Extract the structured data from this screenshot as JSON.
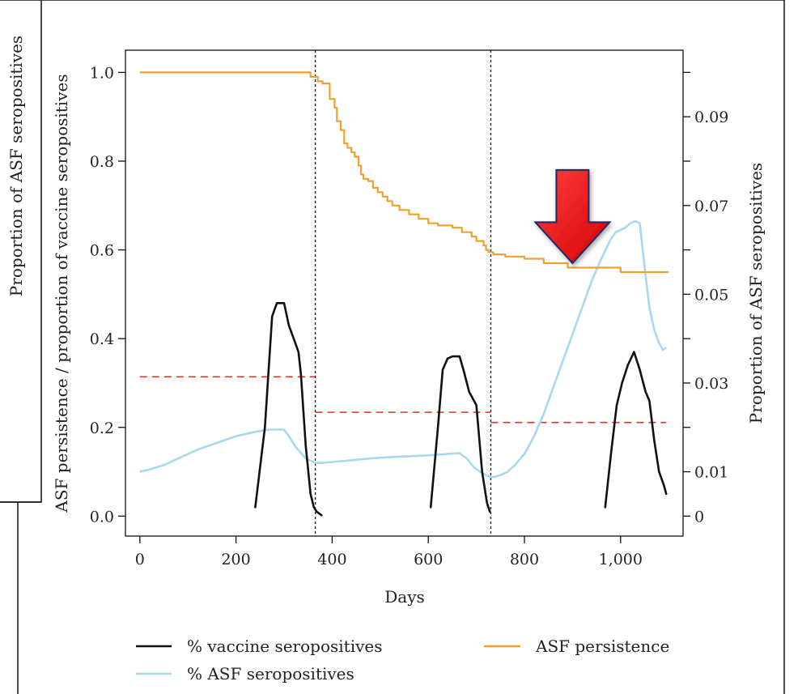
{
  "page": {
    "outer_label": "Proportion of ASF seropositives"
  },
  "chart_data": {
    "type": "line",
    "xlabel": "Days",
    "ylabel_left": "ASF persistence / proportion of vaccine seropositives",
    "ylabel_right": "Proportion of ASF seropositives",
    "xlim": [
      -30,
      1130
    ],
    "ylim_left": [
      -0.045,
      1.05
    ],
    "ylim_right": [
      -0.0045,
      0.105
    ],
    "x_ticks": [
      {
        "value": 0,
        "label": "0"
      },
      {
        "value": 200,
        "label": "200"
      },
      {
        "value": 400,
        "label": "400"
      },
      {
        "value": 600,
        "label": "600"
      },
      {
        "value": 800,
        "label": "800"
      },
      {
        "value": 1000,
        "label": "1,000"
      }
    ],
    "y_ticks_left": [
      {
        "value": 0.0,
        "label": "0.0"
      },
      {
        "value": 0.2,
        "label": "0.2"
      },
      {
        "value": 0.4,
        "label": "0.4"
      },
      {
        "value": 0.6,
        "label": "0.6"
      },
      {
        "value": 0.8,
        "label": "0.8"
      },
      {
        "value": 1.0,
        "label": "1.0"
      }
    ],
    "y_ticks_right": [
      {
        "value": 0,
        "label": "0"
      },
      {
        "value": 0.01,
        "label": "0.01"
      },
      {
        "value": 0.03,
        "label": "0.03"
      },
      {
        "value": 0.05,
        "label": "0.05"
      },
      {
        "value": 0.07,
        "label": "0.07"
      },
      {
        "value": 0.09,
        "label": "0.09"
      }
    ],
    "y_minor_ticks_right": [
      0.02,
      0.04,
      0.06,
      0.08,
      0.1
    ],
    "grid": false,
    "legend_position": "bottom",
    "legend": [
      {
        "label": "% vaccine seropositives",
        "color": "#111111"
      },
      {
        "label": "ASF persistence",
        "color": "#f0a030"
      },
      {
        "label": "% ASF seropositives",
        "color": "#a9d8ee"
      }
    ],
    "vertical_lines": [
      365,
      730
    ],
    "series": [
      {
        "name": "ASF persistence",
        "axis": "left",
        "style": "step",
        "color": "#f0a030",
        "x": [
          0,
          355,
          370,
          380,
          395,
          405,
          410,
          418,
          425,
          432,
          440,
          447,
          455,
          460,
          465,
          475,
          485,
          495,
          505,
          515,
          525,
          540,
          560,
          580,
          600,
          620,
          650,
          670,
          690,
          700,
          715,
          720,
          725,
          735,
          760,
          800,
          840,
          890,
          1000,
          1100
        ],
        "y": [
          1.0,
          0.99,
          0.98,
          0.975,
          0.94,
          0.92,
          0.89,
          0.87,
          0.84,
          0.83,
          0.82,
          0.81,
          0.79,
          0.77,
          0.76,
          0.755,
          0.74,
          0.73,
          0.72,
          0.71,
          0.7,
          0.69,
          0.68,
          0.67,
          0.66,
          0.655,
          0.65,
          0.64,
          0.63,
          0.62,
          0.61,
          0.6,
          0.595,
          0.59,
          0.585,
          0.58,
          0.57,
          0.56,
          0.55,
          0.55
        ]
      },
      {
        "name": "% vaccine seropositives",
        "axis": "left",
        "style": "line",
        "color": "#111111",
        "segments": [
          {
            "x": [
              240,
              260,
              275,
              285,
              300,
              310,
              320,
              330,
              335,
              345,
              355,
              362,
              368,
              374,
              378
            ],
            "y": [
              0.02,
              0.2,
              0.45,
              0.48,
              0.48,
              0.43,
              0.4,
              0.37,
              0.32,
              0.16,
              0.05,
              0.02,
              0.01,
              0.005,
              0.002
            ]
          },
          {
            "x": [
              605,
              620,
              630,
              640,
              650,
              665,
              673,
              685,
              700,
              712,
              722,
              728
            ],
            "y": [
              0.02,
              0.2,
              0.33,
              0.355,
              0.36,
              0.36,
              0.33,
              0.28,
              0.25,
              0.1,
              0.03,
              0.01
            ]
          },
          {
            "x": [
              968,
              980,
              992,
              1003,
              1015,
              1028,
              1040,
              1052,
              1060,
              1070,
              1080,
              1090,
              1095
            ],
            "y": [
              0.02,
              0.14,
              0.25,
              0.3,
              0.34,
              0.37,
              0.33,
              0.28,
              0.26,
              0.17,
              0.1,
              0.07,
              0.05
            ]
          }
        ]
      },
      {
        "name": "% ASF seropositives",
        "axis": "right",
        "style": "line",
        "color": "#a9d8ee",
        "x": [
          0,
          20,
          50,
          80,
          120,
          160,
          200,
          240,
          270,
          300,
          310,
          325,
          345,
          365,
          380,
          400,
          420,
          450,
          480,
          520,
          560,
          600,
          640,
          665,
          680,
          695,
          710,
          725,
          735,
          750,
          765,
          780,
          800,
          820,
          840,
          860,
          880,
          900,
          920,
          940,
          960,
          980,
          990,
          1000,
          1010,
          1020,
          1030,
          1040,
          1050,
          1060,
          1070,
          1080,
          1088,
          1095
        ],
        "y": [
          0.01,
          0.0105,
          0.0115,
          0.013,
          0.015,
          0.0165,
          0.018,
          0.019,
          0.0195,
          0.0195,
          0.018,
          0.0155,
          0.013,
          0.012,
          0.012,
          0.0122,
          0.0124,
          0.0127,
          0.013,
          0.0133,
          0.0135,
          0.0137,
          0.014,
          0.0142,
          0.013,
          0.011,
          0.0098,
          0.009,
          0.0088,
          0.0092,
          0.01,
          0.0115,
          0.014,
          0.018,
          0.023,
          0.029,
          0.035,
          0.041,
          0.047,
          0.053,
          0.058,
          0.0625,
          0.064,
          0.0645,
          0.065,
          0.066,
          0.0665,
          0.066,
          0.056,
          0.047,
          0.042,
          0.039,
          0.0375,
          0.038
        ]
      }
    ],
    "reference_lines": [
      {
        "color": "#e03030",
        "axis": "left",
        "x": [
          0,
          365
        ],
        "y": 0.314
      },
      {
        "color": "#e03030",
        "axis": "left",
        "x": [
          365,
          730
        ],
        "y": 0.234
      },
      {
        "color": "#e03030",
        "axis": "left",
        "x": [
          730,
          1095
        ],
        "y": 0.211
      }
    ],
    "annotations": [
      {
        "type": "arrow",
        "direction": "down",
        "color": "#ee1111",
        "outline": "#1a2a6a",
        "x": 900,
        "y_top_left": 0.78,
        "y_tip_left": 0.57
      }
    ]
  }
}
